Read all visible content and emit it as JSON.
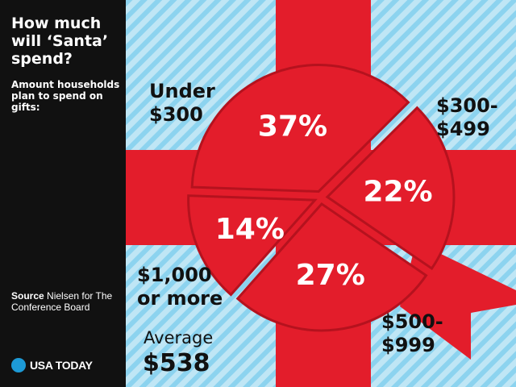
{
  "header": {
    "title": "How much\nwill ‘Santa’\nspend?",
    "subtitle": "Amount households plan to spend on gifts:"
  },
  "footer": {
    "source_label": "Source",
    "source_text": "Nielsen for The Conference Board",
    "brand": "USA TODAY"
  },
  "colors": {
    "sidebar": "#111111",
    "stripe_light": "#bfe6f5",
    "stripe_blue": "#8cd3ef",
    "ribbon": "#e31d2b",
    "ribbon_dark": "#b5121e",
    "brand_dot": "#1d9ad6"
  },
  "icons": {
    "brand_logo": "blue-dot-icon"
  },
  "average": {
    "label": "Average",
    "value": "$538"
  },
  "chart_data": {
    "type": "pie",
    "title": "How much will ‘Santa’ spend?",
    "subtitle": "Amount households plan to spend on gifts:",
    "unit": "%",
    "slices": [
      {
        "label": "Under\n$300",
        "value": 37,
        "value_label": "37%"
      },
      {
        "label": "$300-\n$499",
        "value": 22,
        "value_label": "22%"
      },
      {
        "label": "$500-\n$999",
        "value": 27,
        "value_label": "27%"
      },
      {
        "label": "$1,000\nor more",
        "value": 14,
        "value_label": "14%"
      }
    ]
  }
}
